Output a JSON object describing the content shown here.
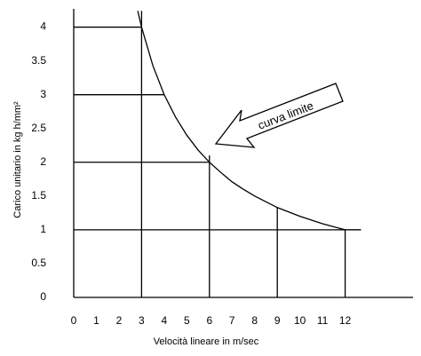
{
  "chart_data": {
    "type": "line",
    "x_label": "Velocità lineare in m/sec",
    "y_label": "Carico unitario in kg h/mm²",
    "annotation": "curva limite",
    "x": [
      2.83,
      3,
      3.5,
      4,
      4.5,
      5,
      5.5,
      6,
      6.5,
      7,
      7.5,
      8,
      9,
      10,
      11,
      12,
      12.7
    ],
    "series": [
      {
        "color": "#000000",
        "values": [
          4.24,
          4,
          3.43,
          3,
          2.67,
          2.4,
          2.18,
          2,
          1.85,
          1.71,
          1.6,
          1.5,
          1.33,
          1.2,
          1.09,
          1,
          1
        ]
      }
    ],
    "hlines": [
      {
        "y": 4,
        "x_end": 3
      },
      {
        "y": 3,
        "x_end": 4
      },
      {
        "y": 2,
        "x_end": 6
      },
      {
        "y": 1,
        "x_end": 12.7
      }
    ],
    "vlines": [
      {
        "x": 3,
        "y_end": 4.24
      },
      {
        "x": 6,
        "y_end": 2.1
      },
      {
        "x": 9,
        "y_end": 1.33
      },
      {
        "x": 12,
        "y_end": 1
      }
    ],
    "xlim": [
      0,
      15
    ],
    "ylim": [
      0,
      4.27
    ],
    "xticks": [
      0,
      1,
      2,
      3,
      4,
      5,
      6,
      7,
      8,
      9,
      10,
      11,
      12
    ],
    "yticks": [
      0,
      0.5,
      1,
      1.5,
      2,
      2.5,
      3,
      3.5,
      4
    ]
  }
}
